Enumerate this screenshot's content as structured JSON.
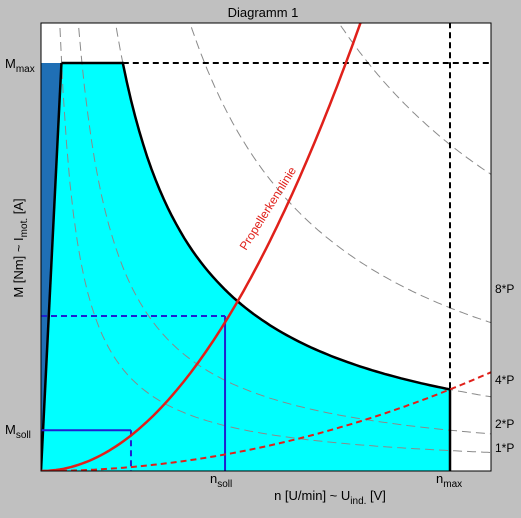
{
  "colors": {
    "background": "#c0c0c0",
    "plot_bg": "#ffffff",
    "operating_region": "#00ffff",
    "left_region": "#1f6fb5",
    "propeller_curve": "#e0201a",
    "marker_lines": "#2020d0",
    "power_curves": "#8a8a8a",
    "boundary": "#000000"
  },
  "chart_data": {
    "type": "line",
    "title": "Diagramm 1",
    "xlabel": {
      "main": "n [U/min] ~ U",
      "sub": "ind.",
      "unit": " [V]"
    },
    "ylabel": {
      "main": "M [Nm] ~ I",
      "sub": "mot.",
      "unit": " [A]"
    },
    "xlim": [
      0,
      1.1
    ],
    "ylim": [
      0,
      1.1
    ],
    "axis_markers": {
      "x": [
        {
          "main": "n",
          "sub": "soll",
          "value": 0.45
        },
        {
          "main": "n",
          "sub": "max",
          "value": 1.0
        }
      ],
      "y": [
        {
          "main": "M",
          "sub": "max",
          "value": 1.0
        },
        {
          "main": "M",
          "sub": "soll",
          "value": 0.1
        }
      ]
    },
    "constant_power_curves": [
      {
        "label": "1*P",
        "power": 0.05
      },
      {
        "label": "2*P",
        "power": 0.1
      },
      {
        "label": "4*P",
        "power": 0.2
      },
      {
        "label": "8*P",
        "power": 0.4
      },
      {
        "label": "",
        "power": 0.8
      },
      {
        "label": "",
        "power": 1.6
      }
    ],
    "operating_limit": {
      "torque_max": 1.0,
      "power_max": 0.2,
      "n_max": 1.0
    },
    "propeller_curve": {
      "label": "Propellerkennlinie",
      "formula": "M = k * n^2",
      "k": 1.8
    },
    "generator_curve": {
      "formula": "M = k * n^2",
      "k": 0.2
    },
    "operating_points": [
      {
        "n": 0.22,
        "M": 0.1
      },
      {
        "n": 0.45,
        "M": 0.38
      }
    ]
  }
}
